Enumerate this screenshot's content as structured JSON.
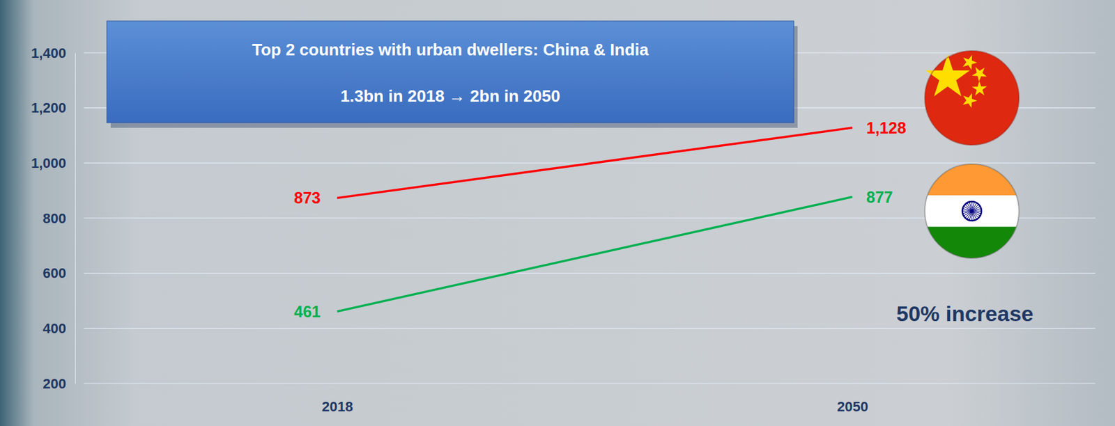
{
  "chart_data": {
    "type": "line",
    "title": "Top 2 countries with urban dwellers: China & India",
    "subtitle": "1.3bn in 2018 → 2bn in 2050",
    "annotations": [
      "50% increase"
    ],
    "categories": [
      "2018",
      "2050"
    ],
    "series": [
      {
        "color": "#ff0000",
        "values": [
          873,
          1128
        ],
        "value_labels": [
          "873",
          "1,128"
        ]
      },
      {
        "color": "#00b050",
        "values": [
          461,
          877
        ]
      }
    ],
    "ylim": [
      200,
      1400
    ],
    "yticks": [
      {
        "value": 200,
        "label": "200"
      },
      {
        "value": 400,
        "label": "400"
      },
      {
        "value": 600,
        "label": "600"
      },
      {
        "value": 800,
        "label": "800"
      },
      {
        "value": 1000,
        "label": "1,000"
      },
      {
        "value": 1200,
        "label": "1,200"
      },
      {
        "value": 1400,
        "label": "1,400"
      }
    ],
    "grid": true,
    "data_labels": true
  }
}
